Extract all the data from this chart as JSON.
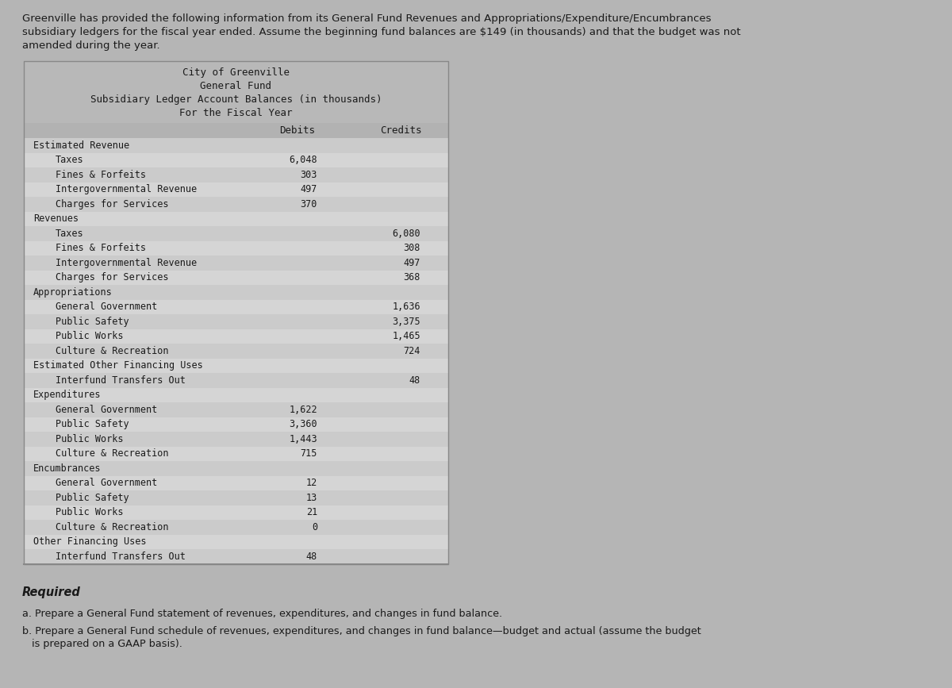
{
  "intro_text": "Greenville has provided the following information from its General Fund Revenues and Appropriations/Expenditure/Encumbrances\nsubsidiary ledgers for the fiscal year ended. Assume the beginning fund balances are $149 (in thousands) and that the budget was not\namended during the year.",
  "title_lines": [
    "City of Greenville",
    "General Fund",
    "Subsidiary Ledger Account Balances (in thousands)",
    "For the Fiscal Year"
  ],
  "col_headers": [
    "Debits",
    "Credits"
  ],
  "rows": [
    {
      "label": "Estimated Revenue",
      "indent": 0,
      "debit": "",
      "credit": ""
    },
    {
      "label": "Taxes",
      "indent": 1,
      "debit": "6,048",
      "credit": ""
    },
    {
      "label": "Fines & Forfeits",
      "indent": 1,
      "debit": "303",
      "credit": ""
    },
    {
      "label": "Intergovernmental Revenue",
      "indent": 1,
      "debit": "497",
      "credit": ""
    },
    {
      "label": "Charges for Services",
      "indent": 1,
      "debit": "370",
      "credit": ""
    },
    {
      "label": "Revenues",
      "indent": 0,
      "debit": "",
      "credit": ""
    },
    {
      "label": "Taxes",
      "indent": 1,
      "debit": "",
      "credit": "6,080"
    },
    {
      "label": "Fines & Forfeits",
      "indent": 1,
      "debit": "",
      "credit": "308"
    },
    {
      "label": "Intergovernmental Revenue",
      "indent": 1,
      "debit": "",
      "credit": "497"
    },
    {
      "label": "Charges for Services",
      "indent": 1,
      "debit": "",
      "credit": "368"
    },
    {
      "label": "Appropriations",
      "indent": 0,
      "debit": "",
      "credit": ""
    },
    {
      "label": "General Government",
      "indent": 1,
      "debit": "",
      "credit": "1,636"
    },
    {
      "label": "Public Safety",
      "indent": 1,
      "debit": "",
      "credit": "3,375"
    },
    {
      "label": "Public Works",
      "indent": 1,
      "debit": "",
      "credit": "1,465"
    },
    {
      "label": "Culture & Recreation",
      "indent": 1,
      "debit": "",
      "credit": "724"
    },
    {
      "label": "Estimated Other Financing Uses",
      "indent": 0,
      "debit": "",
      "credit": ""
    },
    {
      "label": "Interfund Transfers Out",
      "indent": 1,
      "debit": "",
      "credit": "48"
    },
    {
      "label": "Expenditures",
      "indent": 0,
      "debit": "",
      "credit": ""
    },
    {
      "label": "General Government",
      "indent": 1,
      "debit": "1,622",
      "credit": ""
    },
    {
      "label": "Public Safety",
      "indent": 1,
      "debit": "3,360",
      "credit": ""
    },
    {
      "label": "Public Works",
      "indent": 1,
      "debit": "1,443",
      "credit": ""
    },
    {
      "label": "Culture & Recreation",
      "indent": 1,
      "debit": "715",
      "credit": ""
    },
    {
      "label": "Encumbrances",
      "indent": 0,
      "debit": "",
      "credit": ""
    },
    {
      "label": "General Government",
      "indent": 1,
      "debit": "12",
      "credit": ""
    },
    {
      "label": "Public Safety",
      "indent": 1,
      "debit": "13",
      "credit": ""
    },
    {
      "label": "Public Works",
      "indent": 1,
      "debit": "21",
      "credit": ""
    },
    {
      "label": "Culture & Recreation",
      "indent": 1,
      "debit": "0",
      "credit": ""
    },
    {
      "label": "Other Financing Uses",
      "indent": 0,
      "debit": "",
      "credit": ""
    },
    {
      "label": "Interfund Transfers Out",
      "indent": 1,
      "debit": "48",
      "credit": ""
    }
  ],
  "required_label": "Required",
  "required_a": "a. Prepare a General Fund statement of revenues, expenditures, and changes in fund balance.",
  "required_b": "b. Prepare a General Fund schedule of revenues, expenditures, and changes in fund balance—budget and actual (assume the budget\n   is prepared on a GAAP basis).",
  "bg_outer": "#b5b5b5",
  "bg_header": "#b8b8b8",
  "bg_col_header": "#b2b2b2",
  "row_colors": [
    "#cbcbcb",
    "#d5d5d5"
  ],
  "text_color": "#1a1a1a",
  "border_color": "#888888",
  "intro_fontsize": 9.5,
  "title_fontsize": 9.0,
  "row_fontsize": 8.5,
  "required_fontsize": 10.5,
  "body_fontsize": 9.2
}
